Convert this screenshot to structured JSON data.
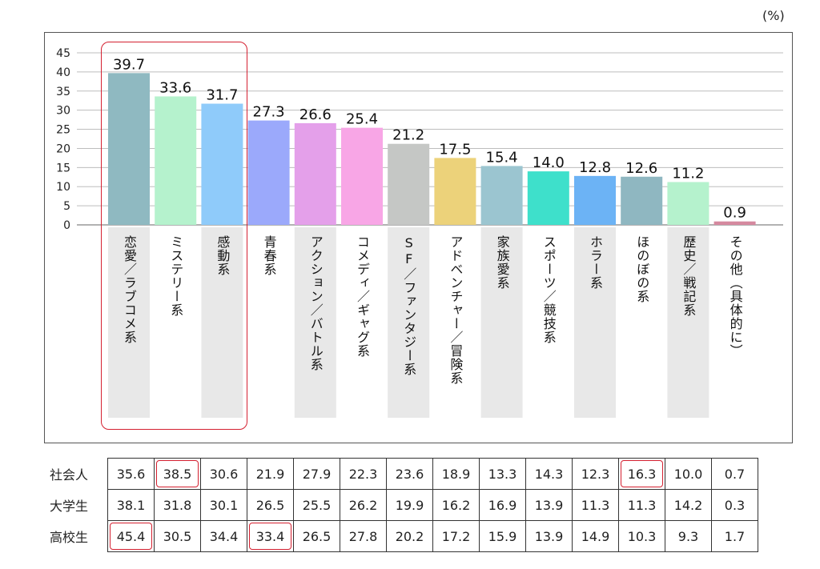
{
  "unit": "(%)",
  "chart_data": {
    "type": "bar",
    "categories": [
      "恋愛／ラブコメ系",
      "ミステリー系",
      "感動系",
      "青春系",
      "アクション／バトル系",
      "コメディ／ギャグ系",
      "SF／ファンタジー系",
      "アドベンチャー／冒険系",
      "家族愛系",
      "スポーツ／競技系",
      "ホラー系",
      "ほのぼの系",
      "歴史／戦記系",
      "その他（具体的に）"
    ],
    "values": [
      39.7,
      33.6,
      31.7,
      27.3,
      26.6,
      25.4,
      21.2,
      17.5,
      15.4,
      14.0,
      12.8,
      12.6,
      11.2,
      0.9
    ],
    "value_labels": [
      "39.7",
      "33.6",
      "31.7",
      "27.3",
      "26.6",
      "25.4",
      "21.2",
      "17.5",
      "15.4",
      "14.0",
      "12.8",
      "12.6",
      "11.2",
      "0.9"
    ],
    "colors": [
      "#8fb9c1",
      "#b5f2cd",
      "#8fcbfa",
      "#9ba9fb",
      "#e4a0ea",
      "#f8a6e6",
      "#c5c7c5",
      "#ecd27a",
      "#9bc5d0",
      "#3ee0cb",
      "#6cb3f5",
      "#8fb7c1",
      "#b5f2cd",
      "#d5899f"
    ],
    "ylim": [
      0,
      45
    ],
    "yticks": [
      "0",
      "5",
      "10",
      "15",
      "20",
      "25",
      "30",
      "35",
      "40",
      "45"
    ],
    "grid": true,
    "highlight_categories": [
      0,
      1,
      2
    ]
  },
  "table": {
    "rows": [
      {
        "label": "社会人",
        "values": [
          "35.6",
          "38.5",
          "30.6",
          "21.9",
          "27.9",
          "22.3",
          "23.6",
          "18.9",
          "13.3",
          "14.3",
          "12.3",
          "16.3",
          "10.0",
          "0.7"
        ],
        "highlights": [
          1,
          11
        ]
      },
      {
        "label": "大学生",
        "values": [
          "38.1",
          "31.8",
          "30.1",
          "26.5",
          "25.5",
          "26.2",
          "19.9",
          "16.2",
          "16.9",
          "13.9",
          "11.3",
          "11.3",
          "14.2",
          "0.3"
        ],
        "highlights": []
      },
      {
        "label": "高校生",
        "values": [
          "45.4",
          "30.5",
          "34.4",
          "33.4",
          "26.5",
          "27.8",
          "20.2",
          "17.2",
          "15.9",
          "13.9",
          "14.9",
          "10.3",
          "9.3",
          "1.7"
        ],
        "highlights": [
          0,
          3
        ]
      }
    ]
  }
}
